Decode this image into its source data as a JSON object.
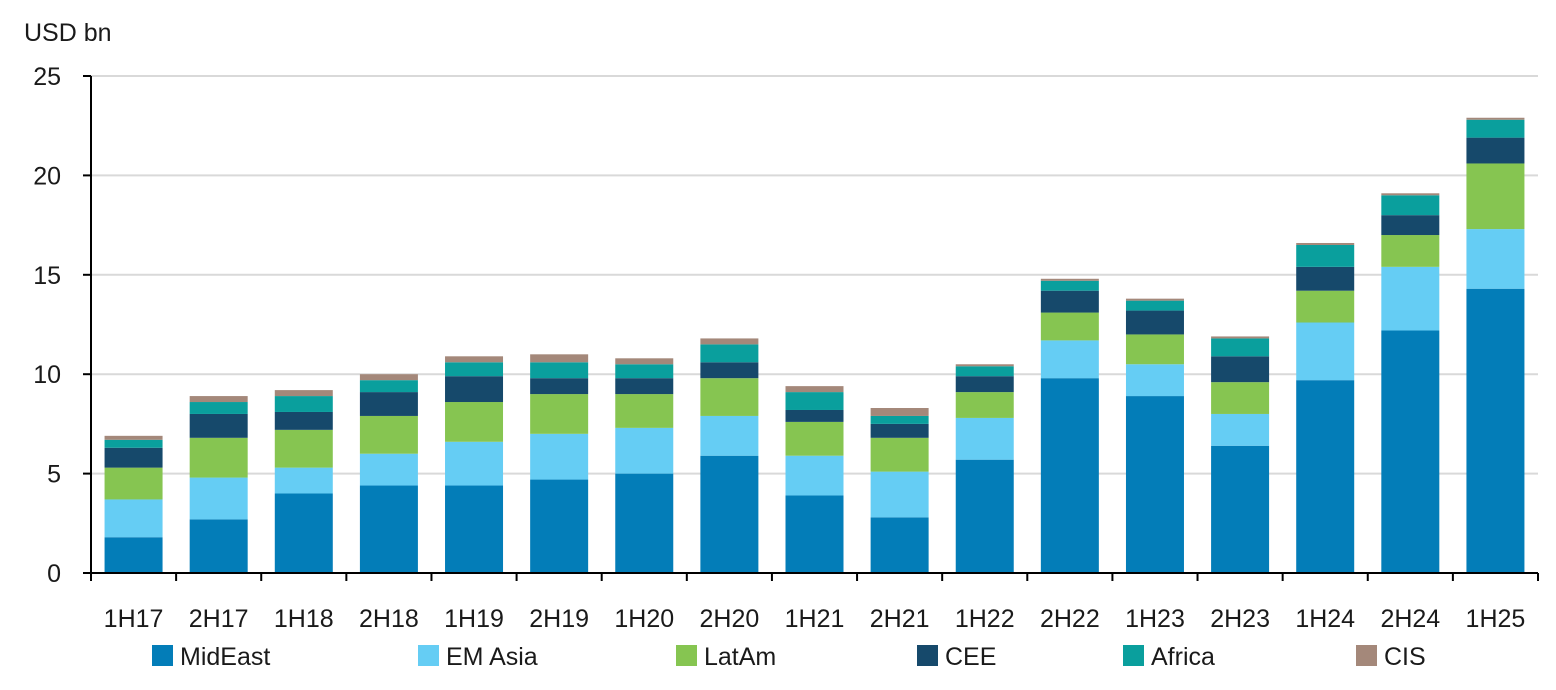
{
  "chart_data": {
    "type": "bar",
    "stacked": true,
    "ylabel": "USD bn",
    "ylim": [
      0,
      25
    ],
    "yticks": [
      0,
      5,
      10,
      15,
      20,
      25
    ],
    "ytick_labels": [
      "0",
      "5",
      "10",
      "15",
      "20",
      "25"
    ],
    "grid": true,
    "legend_position": "bottom",
    "categories": [
      "1H17",
      "2H17",
      "1H18",
      "2H18",
      "1H19",
      "2H19",
      "1H20",
      "2H20",
      "1H21",
      "2H21",
      "1H22",
      "2H22",
      "1H23",
      "2H23",
      "1H24",
      "2H24",
      "1H25"
    ],
    "series": [
      {
        "name": "MidEast",
        "color": "#037DB8",
        "values": [
          1.8,
          2.7,
          4.0,
          4.4,
          4.4,
          4.7,
          5.0,
          5.9,
          3.9,
          2.8,
          5.7,
          9.8,
          8.9,
          6.4,
          9.7,
          12.2,
          14.3
        ]
      },
      {
        "name": "EM Asia",
        "color": "#65CDF4",
        "values": [
          1.9,
          2.1,
          1.3,
          1.6,
          2.2,
          2.3,
          2.3,
          2.0,
          2.0,
          2.3,
          2.1,
          1.9,
          1.6,
          1.6,
          2.9,
          3.2,
          3.0
        ]
      },
      {
        "name": "LatAm",
        "color": "#86C551",
        "values": [
          1.6,
          2.0,
          1.9,
          1.9,
          2.0,
          2.0,
          1.7,
          1.9,
          1.7,
          1.7,
          1.3,
          1.4,
          1.5,
          1.6,
          1.6,
          1.6,
          3.3
        ]
      },
      {
        "name": "CEE",
        "color": "#16496B",
        "values": [
          1.0,
          1.2,
          0.9,
          1.2,
          1.3,
          0.8,
          0.8,
          0.8,
          0.6,
          0.7,
          0.8,
          1.1,
          1.2,
          1.3,
          1.2,
          1.0,
          1.3
        ]
      },
      {
        "name": "Africa",
        "color": "#0A9F9D",
        "values": [
          0.4,
          0.6,
          0.8,
          0.6,
          0.7,
          0.8,
          0.7,
          0.9,
          0.9,
          0.4,
          0.5,
          0.5,
          0.5,
          0.9,
          1.1,
          1.0,
          0.9
        ]
      },
      {
        "name": "CIS",
        "color": "#A4887A",
        "values": [
          0.2,
          0.3,
          0.3,
          0.3,
          0.3,
          0.4,
          0.3,
          0.3,
          0.3,
          0.4,
          0.1,
          0.1,
          0.1,
          0.1,
          0.1,
          0.1,
          0.1
        ]
      }
    ]
  },
  "colors": {
    "axis": "#000000",
    "grid": "#d9d9d9",
    "text": "#1a1a1a"
  }
}
